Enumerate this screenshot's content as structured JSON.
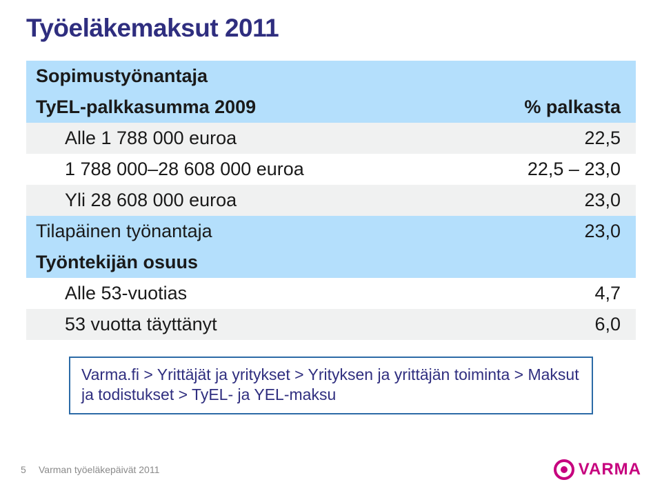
{
  "title": "Työeläkemaksut 2011",
  "colors": {
    "title": "#2f2e7f",
    "header_bg": "#b4dffc",
    "stripe_bg": "#f0f1f1",
    "note_border": "#2b6aa6",
    "note_text": "#2f2e7f",
    "logo": "#c6007e",
    "footer_text": "#8a8a8a",
    "background": "#ffffff"
  },
  "table": {
    "header": {
      "left": "Sopimustyönantaja",
      "right": ""
    },
    "rows": [
      {
        "label": "TyEL-palkkasumma 2009",
        "value": "% palkasta",
        "classes": "head-row"
      },
      {
        "label": "Alle 1 788 000 euroa",
        "value": "22,5",
        "classes": "stripe",
        "indent": true
      },
      {
        "label": "1 788 000–28 608 000 euroa",
        "value": "22,5 – 23,0",
        "classes": "",
        "indent": true
      },
      {
        "label": "Yli 28 608 000 euroa",
        "value": "23,0",
        "classes": "stripe",
        "indent": true
      },
      {
        "label": "Tilapäinen työnantaja",
        "value": "23,0",
        "classes": "section-head"
      },
      {
        "label": "Työntekijän osuus",
        "value": "",
        "classes": "section-head bold stripe"
      },
      {
        "label": "Alle 53-vuotias",
        "value": "4,7",
        "classes": "",
        "indent": true
      },
      {
        "label": "53 vuotta täyttänyt",
        "value": "6,0",
        "classes": "stripe",
        "indent": true
      }
    ]
  },
  "note": "Varma.fi > Yrittäjät ja yritykset > Yrityksen ja yrittäjän toiminta > Maksut ja todistukset > TyEL- ja YEL-maksu",
  "footer": {
    "page": "5",
    "text": "Varman työeläkepäivät 2011",
    "logo_text": "VARMA"
  }
}
